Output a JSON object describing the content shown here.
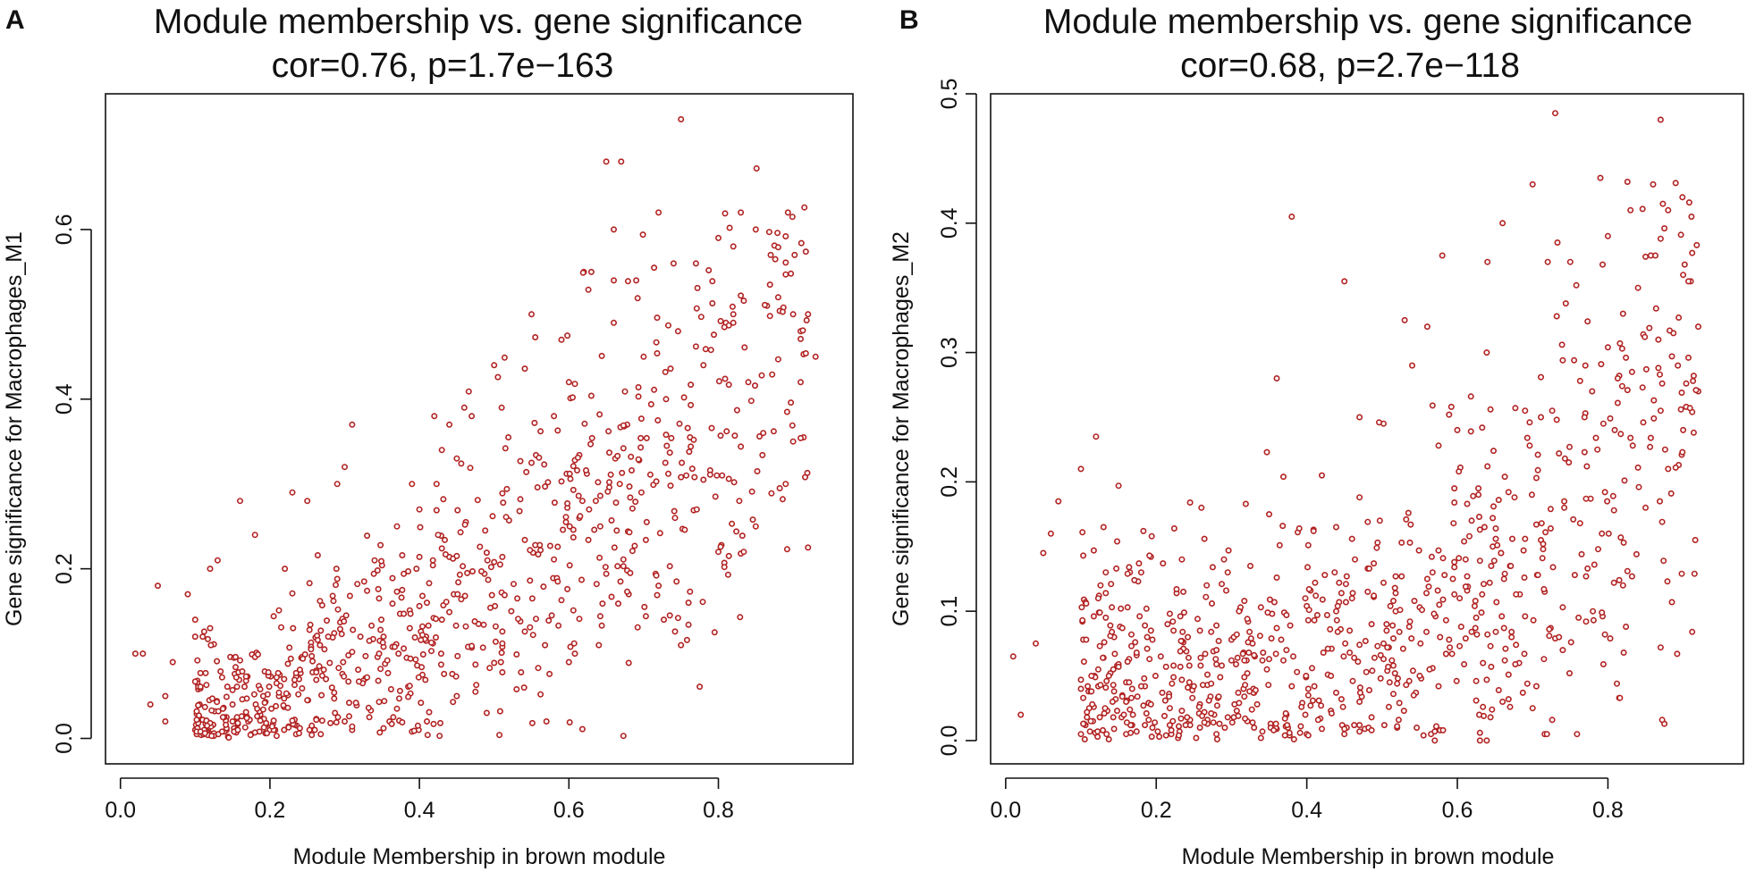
{
  "chart_data": [
    {
      "type": "scatter",
      "panel_label": "A",
      "title": "Module membership vs. gene significance",
      "subtitle": "cor=0.76, p=1.7e−163",
      "xlabel": "Module Membership in brown module",
      "ylabel": "Gene significance for  Macrophages_M1",
      "xlim": [
        -0.02,
        0.98
      ],
      "ylim": [
        -0.03,
        0.76
      ],
      "xticks": [
        0.0,
        0.2,
        0.4,
        0.6,
        0.8
      ],
      "xtick_labels": [
        "0.0",
        "0.2",
        "0.4",
        "0.6",
        "0.8"
      ],
      "yticks": [
        0.0,
        0.2,
        0.4,
        0.6
      ],
      "ytick_labels": [
        "0.0",
        "0.2",
        "0.4",
        "0.6"
      ],
      "point_color": "#b22222",
      "n_points": 900,
      "correlation": 0.76,
      "p_value": "1.7e-163",
      "points": [
        [
          0.02,
          0.1
        ],
        [
          0.03,
          0.1
        ],
        [
          0.05,
          0.18
        ],
        [
          0.04,
          0.04
        ],
        [
          0.06,
          0.05
        ],
        [
          0.06,
          0.02
        ],
        [
          0.07,
          0.09
        ],
        [
          0.09,
          0.17
        ],
        [
          0.1,
          0.14
        ],
        [
          0.11,
          0.12
        ],
        [
          0.12,
          0.13
        ],
        [
          0.12,
          0.2
        ],
        [
          0.13,
          0.21
        ],
        [
          0.16,
          0.28
        ],
        [
          0.18,
          0.24
        ],
        [
          0.22,
          0.2
        ],
        [
          0.23,
          0.29
        ],
        [
          0.25,
          0.28
        ],
        [
          0.29,
          0.3
        ],
        [
          0.3,
          0.32
        ],
        [
          0.31,
          0.37
        ],
        [
          0.34,
          0.21
        ],
        [
          0.37,
          0.25
        ],
        [
          0.39,
          0.3
        ],
        [
          0.4,
          0.27
        ],
        [
          0.42,
          0.38
        ],
        [
          0.43,
          0.34
        ],
        [
          0.44,
          0.37
        ],
        [
          0.45,
          0.33
        ],
        [
          0.46,
          0.39
        ],
        [
          0.47,
          0.38
        ],
        [
          0.5,
          0.44
        ],
        [
          0.51,
          0.39
        ],
        [
          0.55,
          0.5
        ],
        [
          0.58,
          0.38
        ],
        [
          0.59,
          0.47
        ],
        [
          0.6,
          0.42
        ],
        [
          0.62,
          0.55
        ],
        [
          0.63,
          0.55
        ],
        [
          0.65,
          0.68
        ],
        [
          0.66,
          0.6
        ],
        [
          0.67,
          0.68
        ],
        [
          0.69,
          0.54
        ],
        [
          0.72,
          0.62
        ],
        [
          0.74,
          0.56
        ],
        [
          0.75,
          0.73
        ],
        [
          0.77,
          0.56
        ],
        [
          0.8,
          0.59
        ],
        [
          0.82,
          0.58
        ],
        [
          0.83,
          0.62
        ],
        [
          0.85,
          0.6
        ],
        [
          0.87,
          0.57
        ],
        [
          0.88,
          0.52
        ],
        [
          0.9,
          0.5
        ],
        [
          0.92,
          0.5
        ],
        [
          0.93,
          0.45
        ],
        [
          0.9,
          0.35
        ],
        [
          0.89,
          0.3
        ],
        [
          0.85,
          0.25
        ],
        [
          0.8,
          0.22
        ],
        [
          0.76,
          0.16
        ],
        [
          0.75,
          0.11
        ],
        [
          0.72,
          0.18
        ],
        [
          0.68,
          0.17
        ],
        [
          0.64,
          0.11
        ],
        [
          0.6,
          0.09
        ],
        [
          0.57,
          0.02
        ],
        [
          0.54,
          0.06
        ],
        [
          0.49,
          0.03
        ],
        [
          0.45,
          0.05
        ],
        [
          0.41,
          0.02
        ],
        [
          0.36,
          0.02
        ],
        [
          0.3,
          0.02
        ],
        [
          0.26,
          0.01
        ],
        [
          0.2,
          0.01
        ],
        [
          0.15,
          0.02
        ],
        [
          0.1,
          0.01
        ],
        [
          0.66,
          0.49
        ],
        [
          0.7,
          0.45
        ],
        [
          0.73,
          0.4
        ],
        [
          0.78,
          0.44
        ],
        [
          0.81,
          0.49
        ],
        [
          0.84,
          0.42
        ],
        [
          0.86,
          0.36
        ],
        [
          0.91,
          0.42
        ]
      ]
    },
    {
      "type": "scatter",
      "panel_label": "B",
      "title": "Module membership vs. gene significance",
      "subtitle": "cor=0.68, p=2.7e−118",
      "xlabel": "Module Membership in brown module",
      "ylabel": "Gene significance for  Macrophages_M2",
      "xlim": [
        -0.02,
        0.98
      ],
      "ylim": [
        -0.018,
        0.5
      ],
      "xticks": [
        0.0,
        0.2,
        0.4,
        0.6,
        0.8
      ],
      "xtick_labels": [
        "0.0",
        "0.2",
        "0.4",
        "0.6",
        "0.8"
      ],
      "yticks": [
        0.0,
        0.1,
        0.2,
        0.3,
        0.4,
        0.5
      ],
      "ytick_labels": [
        "0.0",
        "0.1",
        "0.2",
        "0.3",
        "0.4",
        "0.5"
      ],
      "point_color": "#b22222",
      "n_points": 900,
      "correlation": 0.68,
      "p_value": "2.7e-118",
      "points": [
        [
          0.01,
          0.065
        ],
        [
          0.02,
          0.02
        ],
        [
          0.04,
          0.075
        ],
        [
          0.05,
          0.145
        ],
        [
          0.06,
          0.16
        ],
        [
          0.07,
          0.185
        ],
        [
          0.1,
          0.21
        ],
        [
          0.12,
          0.235
        ],
        [
          0.13,
          0.165
        ],
        [
          0.18,
          0.13
        ],
        [
          0.26,
          0.18
        ],
        [
          0.29,
          0.14
        ],
        [
          0.35,
          0.175
        ],
        [
          0.36,
          0.28
        ],
        [
          0.38,
          0.405
        ],
        [
          0.42,
          0.205
        ],
        [
          0.45,
          0.355
        ],
        [
          0.47,
          0.25
        ],
        [
          0.53,
          0.325
        ],
        [
          0.54,
          0.29
        ],
        [
          0.56,
          0.32
        ],
        [
          0.58,
          0.375
        ],
        [
          0.6,
          0.24
        ],
        [
          0.64,
          0.37
        ],
        [
          0.66,
          0.4
        ],
        [
          0.7,
          0.43
        ],
        [
          0.72,
          0.37
        ],
        [
          0.73,
          0.485
        ],
        [
          0.75,
          0.37
        ],
        [
          0.79,
          0.435
        ],
        [
          0.8,
          0.39
        ],
        [
          0.83,
          0.41
        ],
        [
          0.84,
          0.35
        ],
        [
          0.86,
          0.43
        ],
        [
          0.87,
          0.48
        ],
        [
          0.88,
          0.41
        ],
        [
          0.9,
          0.36
        ],
        [
          0.91,
          0.355
        ],
        [
          0.92,
          0.32
        ],
        [
          0.92,
          0.27
        ],
        [
          0.9,
          0.24
        ],
        [
          0.88,
          0.21
        ],
        [
          0.85,
          0.18
        ],
        [
          0.82,
          0.12
        ],
        [
          0.78,
          0.1
        ],
        [
          0.74,
          0.07
        ],
        [
          0.7,
          0.025
        ],
        [
          0.66,
          0.03
        ],
        [
          0.63,
          0.0
        ],
        [
          0.57,
          0.0
        ],
        [
          0.52,
          0.01
        ],
        [
          0.45,
          0.005
        ],
        [
          0.4,
          0.005
        ],
        [
          0.33,
          0.01
        ],
        [
          0.28,
          0.005
        ],
        [
          0.22,
          0.005
        ],
        [
          0.16,
          0.005
        ],
        [
          0.1,
          0.005
        ]
      ]
    }
  ]
}
